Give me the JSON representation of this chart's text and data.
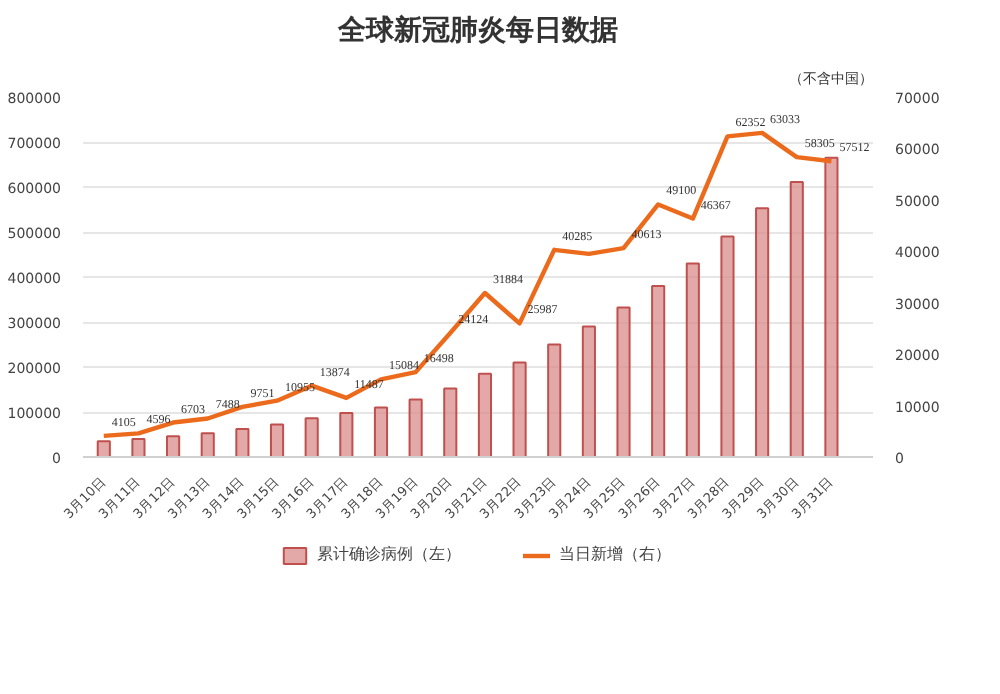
{
  "chart_data": {
    "type": "bar",
    "title": "全球新冠肺炎每日数据",
    "subtitle": "（不含中国）",
    "categories": [
      "3月10日",
      "3月11日",
      "3月12日",
      "3月13日",
      "3月14日",
      "3月15日",
      "3月16日",
      "3月17日",
      "3月18日",
      "3月19日",
      "3月20日",
      "3月21日",
      "3月22日",
      "3月23日",
      "3月24日",
      "3月25日",
      "3月26日",
      "3月27日",
      "3月28日",
      "3月29日",
      "3月30日",
      "3月31日"
    ],
    "series": [
      {
        "name": "累计确诊病例（左）",
        "color": "#d98c8c",
        "values": [
          35000,
          40000,
          46000,
          53000,
          62000,
          72000,
          86000,
          98000,
          110000,
          128000,
          152000,
          185000,
          210000,
          250000,
          290000,
          332000,
          380000,
          430000,
          490000,
          553000,
          611000,
          665000
        ]
      },
      {
        "name": "当日新增（右）",
        "type": "line",
        "axis": "y2",
        "color": "#ec6a1c",
        "values": [
          4105,
          4596,
          6703,
          7488,
          9751,
          10955,
          13874,
          11487,
          15084,
          16498,
          24124,
          31884,
          25987,
          40285,
          39500,
          40613,
          49100,
          46367,
          62352,
          63033,
          58305,
          57512
        ],
        "value_labels": [
          "4105",
          "4596",
          "6703",
          "7488",
          "9751",
          "10955",
          "13874",
          "11487",
          "15084",
          "16498",
          "24124",
          "31884",
          "25987",
          "40285",
          null,
          "40613",
          "49100",
          "46367",
          "62352",
          "63033",
          "58305",
          "57512"
        ]
      }
    ],
    "ylim": [
      0,
      800000
    ],
    "yticks": [
      0,
      100000,
      200000,
      300000,
      400000,
      500000,
      600000,
      700000,
      800000
    ],
    "y2lim": [
      0,
      70000
    ],
    "y2ticks": [
      0,
      10000,
      20000,
      30000,
      40000,
      50000,
      60000,
      70000
    ],
    "grid": "y",
    "legend": "bottom"
  }
}
